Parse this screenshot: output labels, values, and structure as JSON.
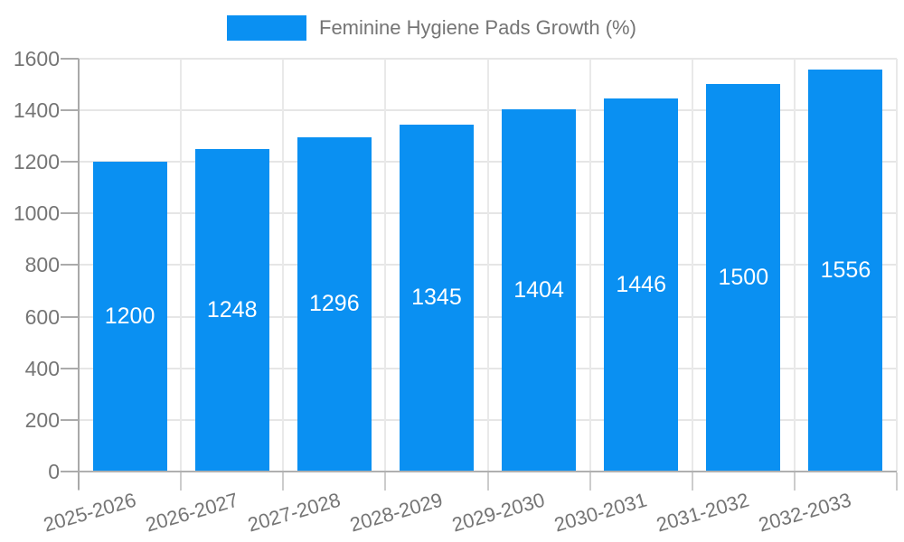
{
  "chart_data": {
    "type": "bar",
    "title": "",
    "legend_label": "Feminine Hygiene Pads Growth (%)",
    "legend_position": "top",
    "categories": [
      "2025-2026",
      "2026-2027",
      "2027-2028",
      "2028-2029",
      "2029-2030",
      "2030-2031",
      "2031-2032",
      "2032-2033"
    ],
    "values": [
      1200,
      1248,
      1296,
      1345,
      1404,
      1446,
      1500,
      1556
    ],
    "value_labels_inside_bars": true,
    "xlabel": "",
    "ylabel": "",
    "ylim": [
      0,
      1600
    ],
    "yticks": [
      0,
      200,
      400,
      600,
      800,
      1000,
      1200,
      1400,
      1600
    ],
    "grid": true,
    "x_label_rotation_deg": -16,
    "colors": {
      "bar": "#0a90f2",
      "axis_text": "#757575",
      "value_label_text": "#ffffff",
      "gridline": "#e6e6e6",
      "axis_line": "#ababab"
    }
  }
}
